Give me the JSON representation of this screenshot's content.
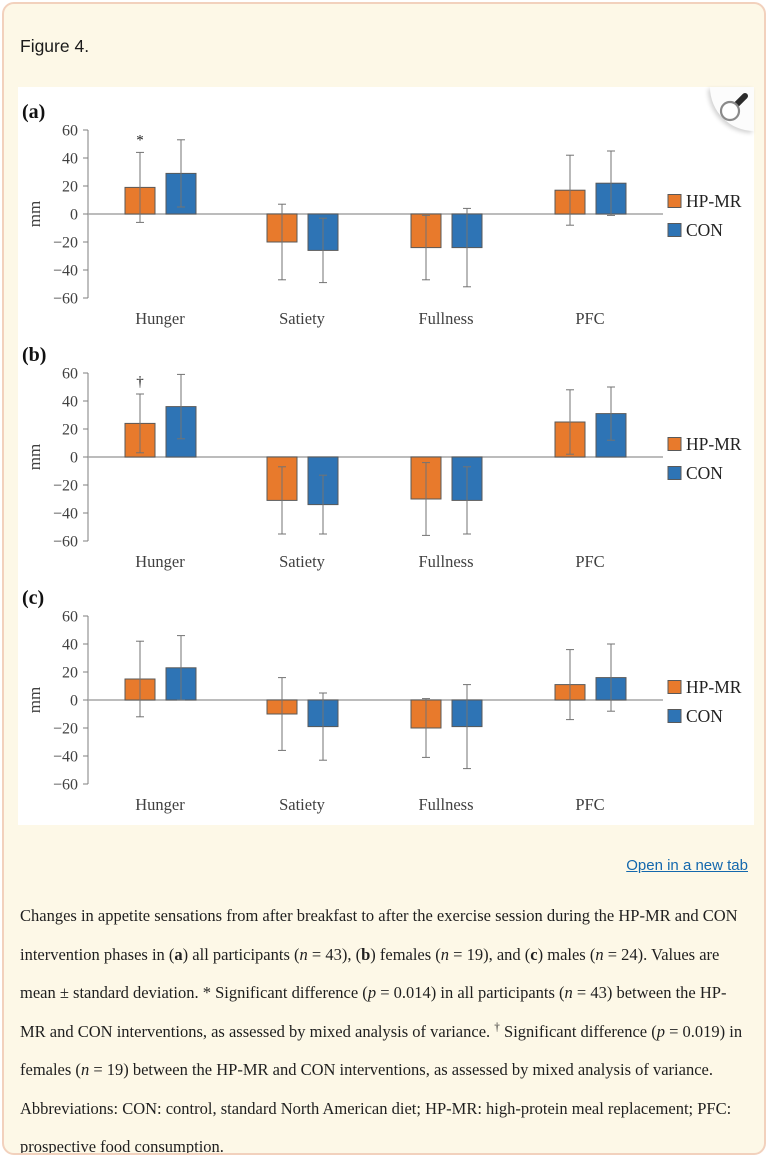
{
  "page": {
    "background": "#ffffff",
    "card_background": "#fdf8e7",
    "card_border": "#f2d1bd"
  },
  "figure": {
    "title": "Figure 4."
  },
  "icons": {
    "magnifier": "magnifying-glass"
  },
  "links": {
    "open_in_new_tab": "Open in a new tab",
    "color": "#1468ad"
  },
  "colors": {
    "hp_mr": "#E87A2C",
    "con": "#2E74B5",
    "bar_border": "#595959",
    "error_bar": "#737373",
    "axis_line": "#7f7f7f",
    "zero_line": "#a6a6a6",
    "tick_text": "#404040"
  },
  "chart_data": [
    {
      "type": "bar",
      "panel_label": "(a)",
      "categories": [
        "Hunger",
        "Satiety",
        "Fullness",
        "PFC"
      ],
      "ylabel": "mm",
      "ylim": [
        -60,
        60
      ],
      "yticks": [
        60,
        40,
        20,
        0,
        -20,
        -40,
        -60
      ],
      "grid": false,
      "legend_position": "right",
      "series": [
        {
          "name": "HP-MR",
          "color": "#E87A2C",
          "values": [
            19,
            -20,
            -24,
            17
          ],
          "sd": [
            25,
            27,
            23,
            25
          ]
        },
        {
          "name": "CON",
          "color": "#2E74B5",
          "values": [
            29,
            -26,
            -24,
            22
          ],
          "sd": [
            24,
            23,
            28,
            23
          ]
        }
      ],
      "annotations": [
        {
          "series": "HP-MR",
          "category": "Hunger",
          "symbol": "*"
        }
      ]
    },
    {
      "type": "bar",
      "panel_label": "(b)",
      "categories": [
        "Hunger",
        "Satiety",
        "Fullness",
        "PFC"
      ],
      "ylabel": "mm",
      "ylim": [
        -60,
        60
      ],
      "yticks": [
        60,
        40,
        20,
        0,
        -20,
        -40,
        -60
      ],
      "grid": false,
      "legend_position": "right",
      "series": [
        {
          "name": "HP-MR",
          "color": "#E87A2C",
          "values": [
            24,
            -31,
            -30,
            25
          ],
          "sd": [
            21,
            24,
            26,
            23
          ]
        },
        {
          "name": "CON",
          "color": "#2E74B5",
          "values": [
            36,
            -34,
            -31,
            31
          ],
          "sd": [
            23,
            21,
            24,
            19
          ]
        }
      ],
      "annotations": [
        {
          "series": "HP-MR",
          "category": "Hunger",
          "symbol": "†"
        }
      ]
    },
    {
      "type": "bar",
      "panel_label": "(c)",
      "categories": [
        "Hunger",
        "Satiety",
        "Fullness",
        "PFC"
      ],
      "ylabel": "mm",
      "ylim": [
        -60,
        60
      ],
      "yticks": [
        60,
        40,
        20,
        0,
        -20,
        -40,
        -60
      ],
      "grid": false,
      "legend_position": "right",
      "series": [
        {
          "name": "HP-MR",
          "color": "#E87A2C",
          "values": [
            15,
            -10,
            -20,
            11
          ],
          "sd": [
            27,
            26,
            21,
            25
          ]
        },
        {
          "name": "CON",
          "color": "#2E74B5",
          "values": [
            23,
            -19,
            -19,
            16
          ],
          "sd": [
            23,
            24,
            30,
            24
          ]
        }
      ],
      "annotations": []
    }
  ],
  "caption": {
    "segments": [
      {
        "t": "Changes in appetite sensations from after breakfast to after the exercise session during the HP-MR and CON intervention phases in ("
      },
      {
        "t": "a",
        "s": "b"
      },
      {
        "t": ") all participants ("
      },
      {
        "t": "n",
        "s": "i"
      },
      {
        "t": " = 43), ("
      },
      {
        "t": "b",
        "s": "b"
      },
      {
        "t": ") females ("
      },
      {
        "t": "n",
        "s": "i"
      },
      {
        "t": " = 19), and ("
      },
      {
        "t": "c",
        "s": "b"
      },
      {
        "t": ") males ("
      },
      {
        "t": "n",
        "s": "i"
      },
      {
        "t": " = 24). Values are mean ± standard deviation. * Significant difference ("
      },
      {
        "t": "p",
        "s": "i"
      },
      {
        "t": " = 0.014) in all participants ("
      },
      {
        "t": "n",
        "s": "i"
      },
      {
        "t": " = 43) between the HP-MR and CON interventions, as assessed by mixed analysis of variance. "
      },
      {
        "t": "†",
        "s": "sup"
      },
      {
        "t": " Significant difference ("
      },
      {
        "t": "p",
        "s": "i"
      },
      {
        "t": " = 0.019) in females ("
      },
      {
        "t": "n",
        "s": "i"
      },
      {
        "t": " = 19) between the HP-MR and CON interventions, as assessed by mixed analysis of variance. Abbreviations: CON: control, standard North American diet; HP-MR: high-protein meal replacement; PFC: prospective food consumption."
      }
    ]
  }
}
